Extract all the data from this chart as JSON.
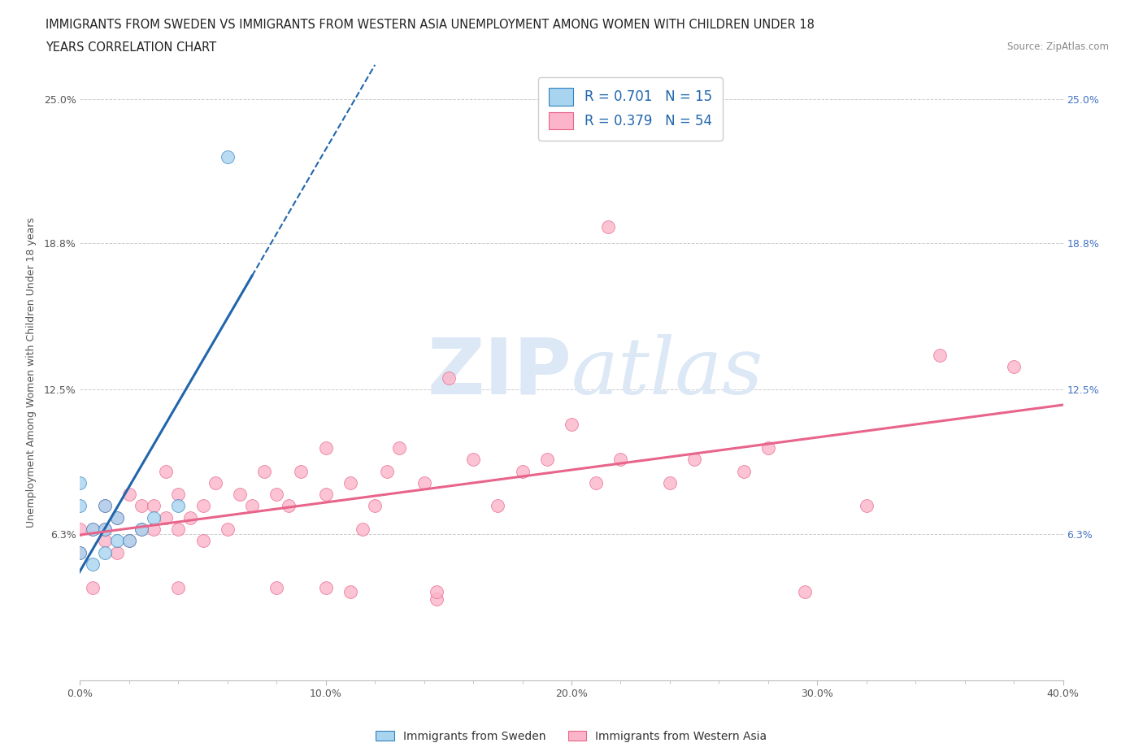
{
  "title_line1": "IMMIGRANTS FROM SWEDEN VS IMMIGRANTS FROM WESTERN ASIA UNEMPLOYMENT AMONG WOMEN WITH CHILDREN UNDER 18",
  "title_line2": "YEARS CORRELATION CHART",
  "source_text": "Source: ZipAtlas.com",
  "ylabel": "Unemployment Among Women with Children Under 18 years",
  "xlim": [
    0.0,
    0.4
  ],
  "ylim": [
    0.0,
    0.265
  ],
  "xticks": [
    0.0,
    0.1,
    0.2,
    0.3,
    0.4
  ],
  "xticklabels": [
    "0.0%",
    "10.0%",
    "20.0%",
    "30.0%",
    "40.0%"
  ],
  "yticks": [
    0.063,
    0.125,
    0.188,
    0.25
  ],
  "yticklabels": [
    "6.3%",
    "12.5%",
    "18.8%",
    "25.0%"
  ],
  "R_sweden": 0.701,
  "N_sweden": 15,
  "R_western_asia": 0.379,
  "N_western_asia": 54,
  "sweden_fill_color": "#a8d4f0",
  "sweden_edge_color": "#3182bd",
  "western_asia_fill_color": "#fbb4c9",
  "western_asia_edge_color": "#e8648a",
  "sweden_line_color": "#2166ac",
  "western_asia_line_color": "#e8648a",
  "legend_text_color": "#2166ac",
  "right_axis_label_color": "#4472c4",
  "background_color": "#ffffff",
  "watermark_color": "#dce8f5",
  "sweden_scatter_x": [
    0.0,
    0.0,
    0.0,
    0.005,
    0.005,
    0.01,
    0.01,
    0.01,
    0.015,
    0.015,
    0.02,
    0.025,
    0.03,
    0.04,
    0.06
  ],
  "sweden_scatter_y": [
    0.055,
    0.075,
    0.085,
    0.05,
    0.065,
    0.055,
    0.065,
    0.075,
    0.06,
    0.07,
    0.06,
    0.065,
    0.07,
    0.075,
    0.225
  ],
  "western_asia_scatter_x": [
    0.0,
    0.0,
    0.005,
    0.005,
    0.01,
    0.01,
    0.01,
    0.015,
    0.015,
    0.02,
    0.02,
    0.025,
    0.025,
    0.03,
    0.03,
    0.035,
    0.035,
    0.04,
    0.04,
    0.045,
    0.05,
    0.05,
    0.055,
    0.06,
    0.065,
    0.07,
    0.075,
    0.08,
    0.085,
    0.09,
    0.1,
    0.1,
    0.11,
    0.115,
    0.12,
    0.125,
    0.13,
    0.14,
    0.15,
    0.16,
    0.17,
    0.18,
    0.19,
    0.2,
    0.21,
    0.215,
    0.22,
    0.24,
    0.25,
    0.27,
    0.28,
    0.32,
    0.35,
    0.38
  ],
  "western_asia_scatter_y": [
    0.055,
    0.065,
    0.04,
    0.065,
    0.06,
    0.065,
    0.075,
    0.055,
    0.07,
    0.06,
    0.08,
    0.065,
    0.075,
    0.065,
    0.075,
    0.07,
    0.09,
    0.065,
    0.08,
    0.07,
    0.06,
    0.075,
    0.085,
    0.065,
    0.08,
    0.075,
    0.09,
    0.08,
    0.075,
    0.09,
    0.08,
    0.1,
    0.085,
    0.065,
    0.075,
    0.09,
    0.1,
    0.085,
    0.13,
    0.095,
    0.075,
    0.09,
    0.095,
    0.11,
    0.085,
    0.195,
    0.095,
    0.085,
    0.095,
    0.09,
    0.1,
    0.075,
    0.14,
    0.135
  ],
  "western_asia_low_x": [
    0.04,
    0.08,
    0.1,
    0.11,
    0.145,
    0.145,
    0.295
  ],
  "western_asia_low_y": [
    0.04,
    0.04,
    0.04,
    0.038,
    0.035,
    0.038,
    0.038
  ]
}
